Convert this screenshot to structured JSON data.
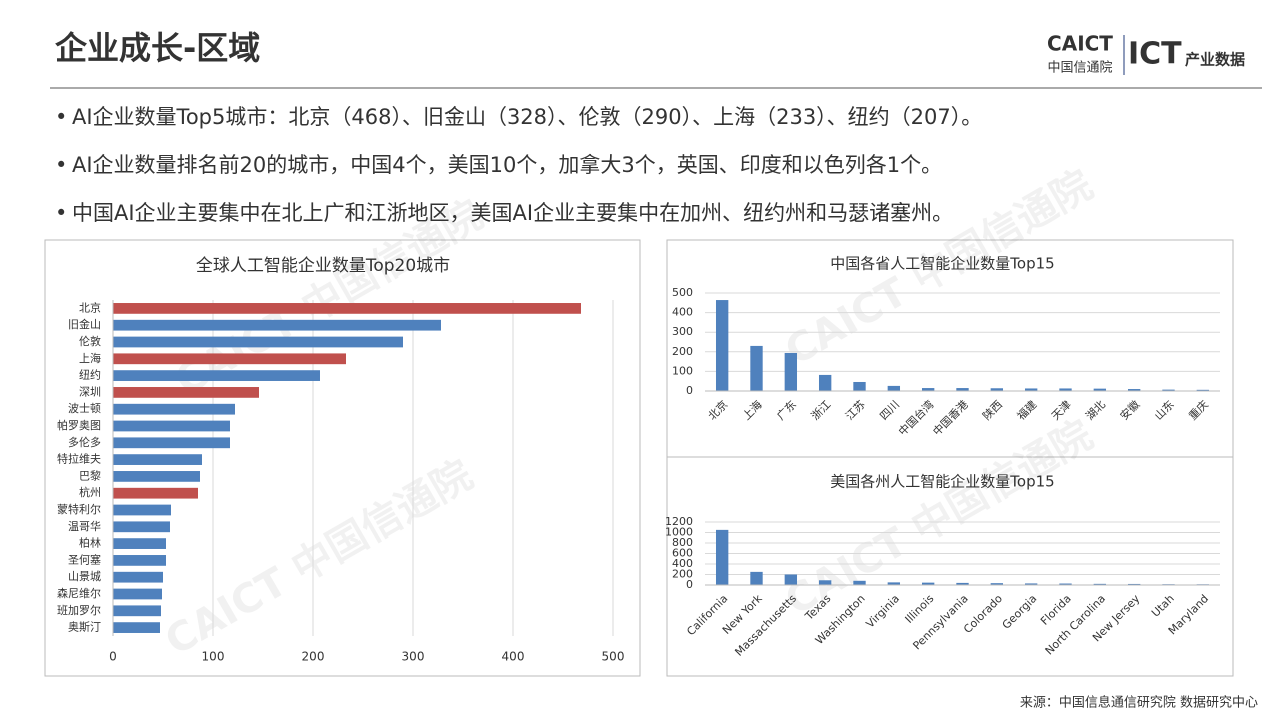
{
  "header": {
    "title": "企业成长-区域",
    "logo_top": "CAICT",
    "logo_bottom": "中国信通院",
    "logo_right": "ICT",
    "logo_right_sub": "产业数据"
  },
  "bullets": [
    "AI企业数量Top5城市：北京（468）、旧金山（328）、伦敦（290）、上海（233）、纽约（207）。",
    "AI企业数量排名前20的城市，中国4个，美国10个，加拿大3个，英国、印度和以色列各1个。",
    "中国AI企业主要集中在北上广和江浙地区，美国AI企业主要集中在加州、纽约州和马瑟诸塞州。"
  ],
  "watermark": "CAICT 中国信通院",
  "source": "来源：中国信息通信研究院 数据研究中心",
  "chart_data": [
    {
      "type": "hbar",
      "title": "全球人工智能企业数量Top20城市",
      "categories": [
        "北京",
        "旧金山",
        "伦敦",
        "上海",
        "纽约",
        "深圳",
        "波士顿",
        "帕罗奥图",
        "多伦多",
        "特拉维夫",
        "巴黎",
        "杭州",
        "蒙特利尔",
        "温哥华",
        "柏林",
        "圣何塞",
        "山景城",
        "森尼维尔",
        "班加罗尔",
        "奥斯汀"
      ],
      "values": [
        468,
        328,
        290,
        233,
        207,
        146,
        122,
        117,
        117,
        89,
        87,
        85,
        58,
        57,
        53,
        53,
        50,
        49,
        48,
        47
      ],
      "colors": [
        "#c0504d",
        "#4f81bd",
        "#4f81bd",
        "#c0504d",
        "#4f81bd",
        "#c0504d",
        "#4f81bd",
        "#4f81bd",
        "#4f81bd",
        "#4f81bd",
        "#4f81bd",
        "#c0504d",
        "#4f81bd",
        "#4f81bd",
        "#4f81bd",
        "#4f81bd",
        "#4f81bd",
        "#4f81bd",
        "#4f81bd",
        "#4f81bd"
      ],
      "xlim": [
        0,
        500
      ],
      "xticks": [
        0,
        100,
        200,
        300,
        400,
        500
      ],
      "grid": true
    },
    {
      "type": "bar",
      "title": "中国各省人工智能企业数量Top15",
      "categories": [
        "北京",
        "上海",
        "广东",
        "浙江",
        "江苏",
        "四川",
        "中国台湾",
        "中国香港",
        "陕西",
        "福建",
        "天津",
        "湖北",
        "安徽",
        "山东",
        "重庆"
      ],
      "values": [
        464,
        230,
        194,
        82,
        46,
        26,
        15,
        15,
        14,
        13,
        13,
        12,
        10,
        7,
        6
      ],
      "color": "#4f81bd",
      "ylim": [
        0,
        500
      ],
      "yticks": [
        0,
        100,
        200,
        300,
        400,
        500
      ],
      "grid": true
    },
    {
      "type": "bar",
      "title": "美国各州人工智能企业数量Top15",
      "categories": [
        "California",
        "New York",
        "Massachusetts",
        "Texas",
        "Washington",
        "Virginia",
        "Illinois",
        "Pennsylvania",
        "Colorado",
        "Georgia",
        "Florida",
        "North Carolina",
        "New Jersey",
        "Utah",
        "Maryland"
      ],
      "values": [
        1050,
        250,
        200,
        90,
        80,
        50,
        45,
        40,
        35,
        30,
        28,
        22,
        20,
        15,
        14
      ],
      "color": "#4f81bd",
      "ylim": [
        0,
        1200
      ],
      "yticks": [
        0,
        200,
        400,
        600,
        800,
        1000,
        1200
      ],
      "grid": true
    }
  ]
}
